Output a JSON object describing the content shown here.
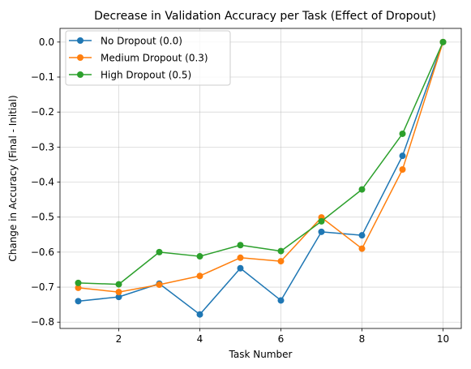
{
  "chart_data": {
    "type": "line",
    "title": "Decrease in Validation Accuracy per Task (Effect of Dropout)",
    "xlabel": "Task Number",
    "ylabel": "Change in Accuracy (Final - Initial)",
    "x": [
      1,
      2,
      3,
      4,
      5,
      6,
      7,
      8,
      9,
      10
    ],
    "xlim": [
      0.55,
      10.45
    ],
    "ylim": [
      -0.818,
      0.039
    ],
    "xticks": [
      2,
      4,
      6,
      8,
      10
    ],
    "yticks": [
      0.0,
      -0.1,
      -0.2,
      -0.3,
      -0.4,
      -0.5,
      -0.6,
      -0.7,
      -0.8
    ],
    "ytick_labels": [
      "0.0",
      "−0.1",
      "−0.2",
      "−0.3",
      "−0.4",
      "−0.5",
      "−0.6",
      "−0.7",
      "−0.8"
    ],
    "grid": true,
    "legend_position": "top-left",
    "series": [
      {
        "name": "No Dropout (0.0)",
        "color": "#1f77b4",
        "values": [
          -0.74,
          -0.728,
          -0.69,
          -0.778,
          -0.646,
          -0.738,
          -0.542,
          -0.552,
          -0.325,
          0.0
        ]
      },
      {
        "name": "Medium Dropout (0.3)",
        "color": "#ff7f0e",
        "values": [
          -0.702,
          -0.714,
          -0.693,
          -0.668,
          -0.616,
          -0.626,
          -0.501,
          -0.59,
          -0.364,
          0.0
        ]
      },
      {
        "name": "High Dropout (0.5)",
        "color": "#2ca02c",
        "values": [
          -0.688,
          -0.692,
          -0.6,
          -0.612,
          -0.58,
          -0.597,
          -0.512,
          -0.421,
          -0.262,
          0.0
        ]
      }
    ]
  }
}
